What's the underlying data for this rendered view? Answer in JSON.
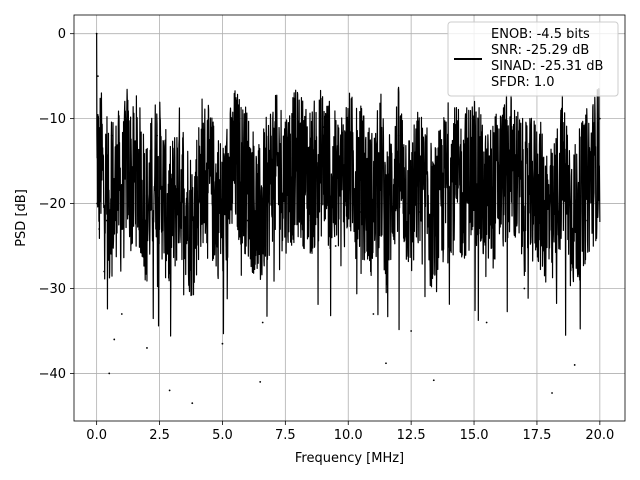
{
  "chart_data": {
    "type": "line",
    "title": "",
    "xlabel": "Frequency [MHz]",
    "ylabel": "PSD [dB]",
    "xlim": [
      -0.9,
      21.0
    ],
    "ylim": [
      -45.6,
      2.2
    ],
    "xticks": [
      0.0,
      2.5,
      5.0,
      7.5,
      10.0,
      12.5,
      15.0,
      17.5,
      20.0
    ],
    "xtick_labels": [
      "0.0",
      "2.5",
      "5.0",
      "7.5",
      "10.0",
      "12.5",
      "15.0",
      "17.5",
      "20.0"
    ],
    "yticks": [
      0,
      -10,
      -20,
      -30,
      -40
    ],
    "ytick_labels": [
      "0",
      "−10",
      "−20",
      "−30",
      "−40"
    ],
    "grid": true,
    "legend_position": "top-right",
    "legend_lines": [
      "ENOB: -4.5 bits",
      "SNR: -25.29 dB",
      "SINAD: -25.31 dB",
      "SFDR: 1.0"
    ],
    "series": [
      {
        "color": "#000000",
        "note": "dense noise spectrum; band approx -8 to -26 dB with deep dips",
        "x": [
          0.0,
          0.02,
          0.05,
          0.1,
          0.15,
          0.2,
          0.3,
          0.4,
          0.5,
          0.6,
          0.7,
          0.8,
          1.0,
          1.2,
          1.4,
          1.6,
          2.0,
          2.4,
          2.9,
          3.3,
          3.8,
          4.2,
          5.0,
          5.5,
          6.0,
          6.5,
          6.6,
          7.0,
          7.5,
          8.0,
          8.5,
          9.0,
          9.5,
          10.0,
          10.5,
          11.0,
          11.3,
          11.5,
          12.0,
          12.5,
          12.8,
          13.4,
          14.0,
          14.5,
          15.0,
          15.5,
          16.0,
          16.5,
          17.0,
          17.5,
          18.1,
          18.5,
          19.0,
          19.5,
          20.0
        ],
        "y": [
          0,
          -20,
          -5,
          -23,
          -10,
          -15,
          -28,
          -22,
          -40,
          -12,
          -36,
          -18,
          -33,
          -10,
          -24,
          -15,
          -37,
          -12,
          -42,
          -20,
          -43.5,
          -15,
          -36.5,
          -12,
          -22,
          -41,
          -34,
          -15,
          -20,
          -13,
          -22,
          -11,
          -25,
          -14,
          -21,
          -33,
          -15,
          -38.8,
          -12,
          -35,
          -21,
          -40.8,
          -18,
          -25,
          -15,
          -34,
          -20,
          -14,
          -30,
          -25,
          -42.3,
          -15,
          -39,
          -22,
          -10
        ]
      }
    ]
  }
}
